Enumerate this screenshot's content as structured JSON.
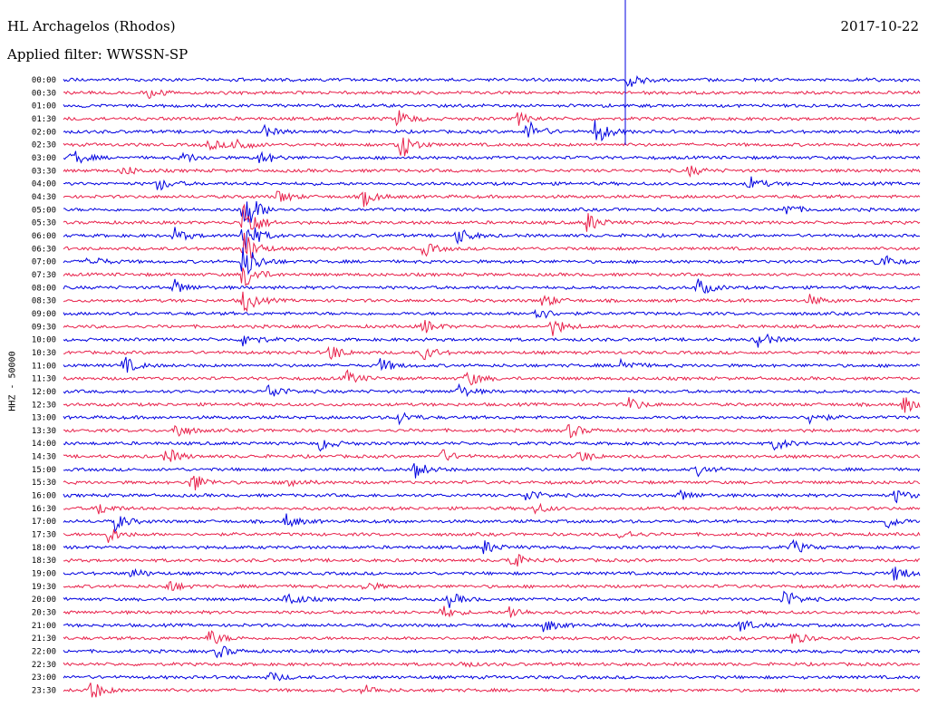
{
  "header": {
    "station": "HL Archagelos (Rhodos)",
    "filter": "Applied filter: WWSSN-SP",
    "date": "2017-10-22"
  },
  "channel_label": "HHZ - 50000",
  "colors": {
    "blue": "#0000e0",
    "red": "#e8204a"
  },
  "chart_data": {
    "type": "line",
    "title": "HL Archagelos (Rhodos)",
    "subtitle": "Applied filter: WWSSN-SP",
    "ylabel": "HHZ - 50000",
    "xlabel": "",
    "grid": false,
    "rows": [
      "00:00",
      "00:30",
      "01:00",
      "01:30",
      "02:00",
      "02:30",
      "03:00",
      "03:30",
      "04:00",
      "04:30",
      "05:00",
      "05:30",
      "06:00",
      "06:30",
      "07:00",
      "07:30",
      "08:00",
      "08:30",
      "09:00",
      "09:30",
      "10:00",
      "10:30",
      "11:00",
      "11:30",
      "12:00",
      "12:30",
      "13:00",
      "13:30",
      "14:00",
      "14:30",
      "15:00",
      "15:30",
      "16:00",
      "16:30",
      "17:00",
      "17:30",
      "18:00",
      "18:30",
      "19:00",
      "19:30",
      "20:00",
      "20:30",
      "21:00",
      "21:30",
      "22:00",
      "22:30",
      "23:00",
      "23:30"
    ],
    "row_colors": [
      "blue",
      "red"
    ],
    "events": [
      {
        "row": 0,
        "x": 0.66,
        "amp": 12
      },
      {
        "row": 1,
        "x": 0.1,
        "amp": 6
      },
      {
        "row": 3,
        "x": 0.53,
        "amp": 7
      },
      {
        "row": 3,
        "x": 0.39,
        "amp": 10
      },
      {
        "row": 4,
        "x": 0.54,
        "amp": 14
      },
      {
        "row": 4,
        "x": 0.62,
        "amp": 16
      },
      {
        "row": 4,
        "x": 0.23,
        "amp": 8
      },
      {
        "row": 5,
        "x": 0.39,
        "amp": 22
      },
      {
        "row": 5,
        "x": 0.2,
        "amp": 10
      },
      {
        "row": 5,
        "x": 0.17,
        "amp": 6
      },
      {
        "row": 6,
        "x": 0.01,
        "amp": 10
      },
      {
        "row": 6,
        "x": 0.14,
        "amp": 6
      },
      {
        "row": 6,
        "x": 0.23,
        "amp": 8
      },
      {
        "row": 7,
        "x": 0.07,
        "amp": 6
      },
      {
        "row": 7,
        "x": 0.73,
        "amp": 6
      },
      {
        "row": 8,
        "x": 0.11,
        "amp": 8
      },
      {
        "row": 8,
        "x": 0.8,
        "amp": 8
      },
      {
        "row": 9,
        "x": 0.35,
        "amp": 10
      },
      {
        "row": 9,
        "x": 0.25,
        "amp": 8
      },
      {
        "row": 10,
        "x": 0.21,
        "amp": 30
      },
      {
        "row": 10,
        "x": 0.84,
        "amp": 8
      },
      {
        "row": 11,
        "x": 0.21,
        "amp": 28
      },
      {
        "row": 11,
        "x": 0.61,
        "amp": 12
      },
      {
        "row": 12,
        "x": 0.21,
        "amp": 24
      },
      {
        "row": 12,
        "x": 0.46,
        "amp": 10
      },
      {
        "row": 12,
        "x": 0.13,
        "amp": 8
      },
      {
        "row": 13,
        "x": 0.21,
        "amp": 22
      },
      {
        "row": 13,
        "x": 0.42,
        "amp": 8
      },
      {
        "row": 14,
        "x": 0.21,
        "amp": 24
      },
      {
        "row": 14,
        "x": 0.03,
        "amp": 8
      },
      {
        "row": 14,
        "x": 0.95,
        "amp": 12
      },
      {
        "row": 15,
        "x": 0.21,
        "amp": 18
      },
      {
        "row": 16,
        "x": 0.13,
        "amp": 8
      },
      {
        "row": 16,
        "x": 0.74,
        "amp": 10
      },
      {
        "row": 17,
        "x": 0.21,
        "amp": 14
      },
      {
        "row": 17,
        "x": 0.56,
        "amp": 8
      },
      {
        "row": 17,
        "x": 0.87,
        "amp": 6
      },
      {
        "row": 18,
        "x": 0.55,
        "amp": 10
      },
      {
        "row": 19,
        "x": 0.42,
        "amp": 8
      },
      {
        "row": 19,
        "x": 0.57,
        "amp": 10
      },
      {
        "row": 20,
        "x": 0.81,
        "amp": 10
      },
      {
        "row": 20,
        "x": 0.21,
        "amp": 10
      },
      {
        "row": 21,
        "x": 0.31,
        "amp": 10
      },
      {
        "row": 21,
        "x": 0.42,
        "amp": 8
      },
      {
        "row": 22,
        "x": 0.07,
        "amp": 10
      },
      {
        "row": 22,
        "x": 0.37,
        "amp": 8
      },
      {
        "row": 22,
        "x": 0.65,
        "amp": 8
      },
      {
        "row": 23,
        "x": 0.47,
        "amp": 10
      },
      {
        "row": 23,
        "x": 0.33,
        "amp": 8
      },
      {
        "row": 24,
        "x": 0.24,
        "amp": 10
      },
      {
        "row": 24,
        "x": 0.46,
        "amp": 8
      },
      {
        "row": 25,
        "x": 0.66,
        "amp": 8
      },
      {
        "row": 25,
        "x": 0.98,
        "amp": 10
      },
      {
        "row": 26,
        "x": 0.39,
        "amp": 8
      },
      {
        "row": 26,
        "x": 0.87,
        "amp": 8
      },
      {
        "row": 27,
        "x": 0.13,
        "amp": 10
      },
      {
        "row": 27,
        "x": 0.59,
        "amp": 8
      },
      {
        "row": 28,
        "x": 0.3,
        "amp": 8
      },
      {
        "row": 28,
        "x": 0.83,
        "amp": 8
      },
      {
        "row": 29,
        "x": 0.12,
        "amp": 10
      },
      {
        "row": 29,
        "x": 0.44,
        "amp": 8
      },
      {
        "row": 29,
        "x": 0.6,
        "amp": 8
      },
      {
        "row": 30,
        "x": 0.41,
        "amp": 10
      },
      {
        "row": 30,
        "x": 0.74,
        "amp": 6
      },
      {
        "row": 31,
        "x": 0.15,
        "amp": 12
      },
      {
        "row": 31,
        "x": 0.26,
        "amp": 8
      },
      {
        "row": 32,
        "x": 0.54,
        "amp": 8
      },
      {
        "row": 32,
        "x": 0.72,
        "amp": 6
      },
      {
        "row": 32,
        "x": 0.97,
        "amp": 8
      },
      {
        "row": 33,
        "x": 0.04,
        "amp": 8
      },
      {
        "row": 33,
        "x": 0.55,
        "amp": 6
      },
      {
        "row": 34,
        "x": 0.06,
        "amp": 10
      },
      {
        "row": 34,
        "x": 0.26,
        "amp": 8
      },
      {
        "row": 34,
        "x": 0.96,
        "amp": 8
      },
      {
        "row": 35,
        "x": 0.05,
        "amp": 10
      },
      {
        "row": 35,
        "x": 0.65,
        "amp": 6
      },
      {
        "row": 36,
        "x": 0.49,
        "amp": 8
      },
      {
        "row": 36,
        "x": 0.85,
        "amp": 8
      },
      {
        "row": 37,
        "x": 0.52,
        "amp": 12
      },
      {
        "row": 38,
        "x": 0.08,
        "amp": 6
      },
      {
        "row": 38,
        "x": 0.97,
        "amp": 10
      },
      {
        "row": 39,
        "x": 0.12,
        "amp": 8
      },
      {
        "row": 39,
        "x": 0.35,
        "amp": 6
      },
      {
        "row": 40,
        "x": 0.26,
        "amp": 10
      },
      {
        "row": 40,
        "x": 0.45,
        "amp": 8
      },
      {
        "row": 40,
        "x": 0.84,
        "amp": 12
      },
      {
        "row": 41,
        "x": 0.44,
        "amp": 8
      },
      {
        "row": 41,
        "x": 0.52,
        "amp": 8
      },
      {
        "row": 42,
        "x": 0.56,
        "amp": 8
      },
      {
        "row": 42,
        "x": 0.79,
        "amp": 8
      },
      {
        "row": 43,
        "x": 0.17,
        "amp": 10
      },
      {
        "row": 43,
        "x": 0.85,
        "amp": 8
      },
      {
        "row": 44,
        "x": 0.18,
        "amp": 8
      },
      {
        "row": 45,
        "x": 0.46,
        "amp": 4
      },
      {
        "row": 46,
        "x": 0.24,
        "amp": 6
      },
      {
        "row": 47,
        "x": 0.03,
        "amp": 14
      },
      {
        "row": 47,
        "x": 0.35,
        "amp": 6
      }
    ]
  }
}
